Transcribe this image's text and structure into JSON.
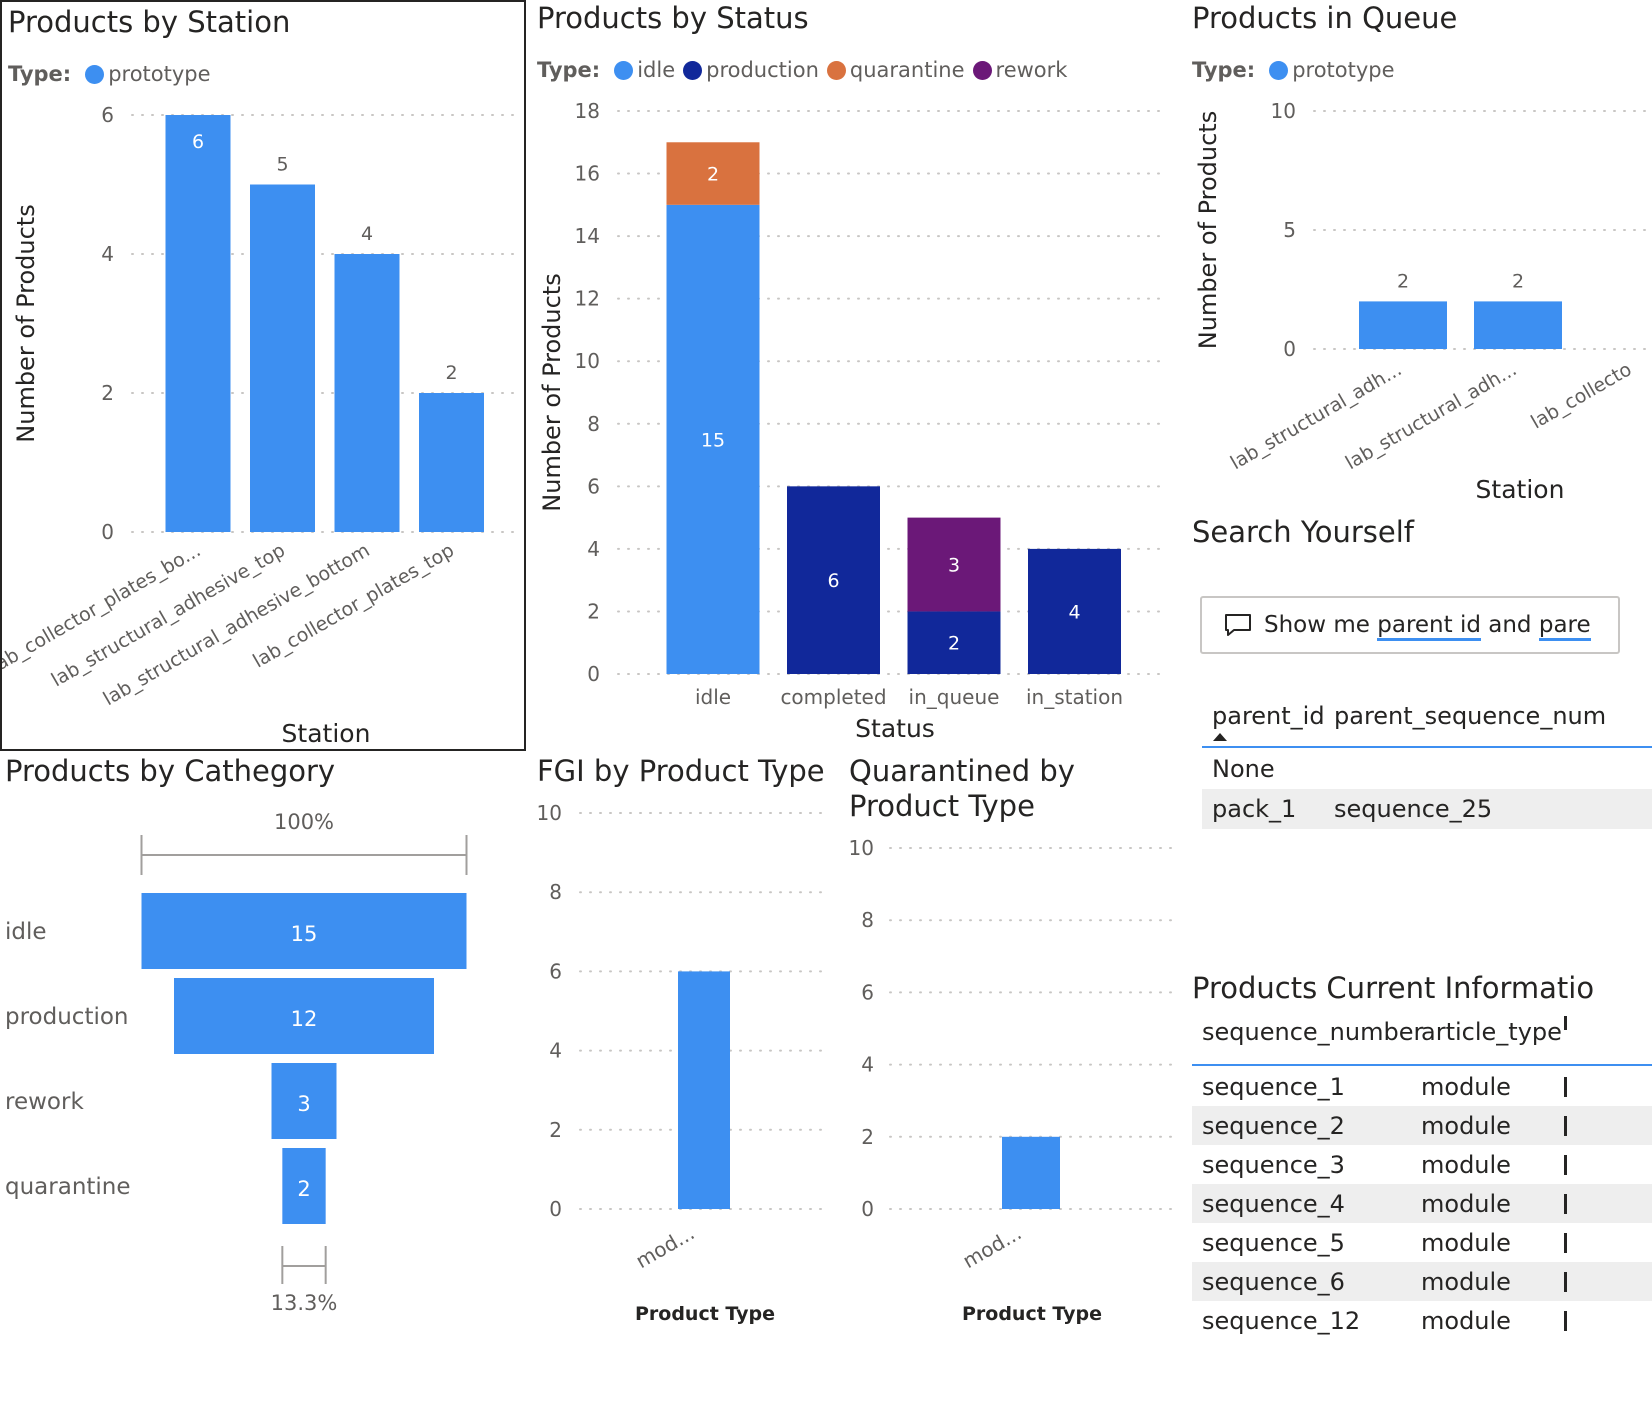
{
  "colors": {
    "idle": "#3d8ff1",
    "production": "#11289a",
    "quarantine": "#d9723f",
    "rework": "#6b1878",
    "grid": "#c8c6c4",
    "text": "#605e5c"
  },
  "products_by_station": {
    "title": "Products by Station",
    "legend_label": "Type:",
    "legend_items": [
      "prototype"
    ]
  },
  "products_by_status": {
    "title": "Products by Status",
    "legend_label": "Type:",
    "legend_items": [
      "idle",
      "production",
      "quarantine",
      "rework"
    ]
  },
  "products_in_queue": {
    "title": "Products in Queue",
    "legend_label": "Type:",
    "legend_items": [
      "prototype"
    ]
  },
  "products_by_category": {
    "title": "Products by Cathegory"
  },
  "fgi_by_type": {
    "title": "FGI by Product Type"
  },
  "quarantined_by_type": {
    "title_line1": "Quarantined by",
    "title_line2": "Product Type"
  },
  "search": {
    "title": "Search Yourself",
    "query_parts": [
      "Show me ",
      "parent id",
      " and ",
      "pare"
    ],
    "icon": "chat-bubble-icon",
    "table": {
      "headers": [
        "parent_id",
        "parent_sequence_num"
      ],
      "rows": [
        [
          "None",
          ""
        ],
        [
          "pack_1",
          "sequence_25"
        ]
      ]
    }
  },
  "current_info": {
    "title": "Products Current Informatio",
    "headers": [
      "sequence_number",
      "article_type"
    ],
    "rows": [
      [
        "sequence_1",
        "module"
      ],
      [
        "sequence_2",
        "module"
      ],
      [
        "sequence_3",
        "module"
      ],
      [
        "sequence_4",
        "module"
      ],
      [
        "sequence_5",
        "module"
      ],
      [
        "sequence_6",
        "module"
      ],
      [
        "sequence_12",
        "module"
      ]
    ]
  },
  "chart_data": [
    {
      "id": "station",
      "type": "bar",
      "title": "Products by Station",
      "xlabel": "Station",
      "ylabel": "Number of Products",
      "ylim": [
        0,
        6
      ],
      "yticks": [
        0,
        2,
        4,
        6
      ],
      "categories": [
        "lab_collector_plates_bo...",
        "lab_structural_adhesive_top",
        "lab_structural_adhesive_bottom",
        "lab_collector_plates_top"
      ],
      "series": [
        {
          "name": "prototype",
          "values": [
            6,
            5,
            4,
            2
          ]
        }
      ],
      "legend": "top-left",
      "grid": true
    },
    {
      "id": "status",
      "type": "bar",
      "stacked": true,
      "title": "Products by Status",
      "xlabel": "Status",
      "ylabel": "Number of Products",
      "ylim": [
        0,
        18
      ],
      "yticks": [
        0,
        2,
        4,
        6,
        8,
        10,
        12,
        14,
        16,
        18
      ],
      "categories": [
        "idle",
        "completed",
        "in_queue",
        "in_station"
      ],
      "series": [
        {
          "name": "idle",
          "values": [
            15,
            0,
            0,
            0
          ]
        },
        {
          "name": "production",
          "values": [
            0,
            6,
            2,
            4
          ]
        },
        {
          "name": "quarantine",
          "values": [
            2,
            0,
            0,
            0
          ]
        },
        {
          "name": "rework",
          "values": [
            0,
            0,
            3,
            0
          ]
        }
      ],
      "legend": "top-left",
      "grid": true
    },
    {
      "id": "queue",
      "type": "bar",
      "title": "Products in Queue",
      "xlabel": "Station",
      "ylabel": "Number of Products",
      "ylim": [
        0,
        10
      ],
      "yticks": [
        0,
        5,
        10
      ],
      "categories": [
        "lab_structural_adh...",
        "lab_structural_adh...",
        "lab_collecto"
      ],
      "series": [
        {
          "name": "prototype",
          "values": [
            2,
            2,
            null
          ]
        }
      ],
      "legend": "top-left",
      "grid": true
    },
    {
      "id": "category",
      "type": "funnel",
      "title": "Products by Cathegory",
      "categories": [
        "idle",
        "production",
        "rework",
        "quarantine"
      ],
      "values": [
        15,
        12,
        3,
        2
      ],
      "top_label": "100%",
      "bottom_label": "13.3%"
    },
    {
      "id": "fgi",
      "type": "bar",
      "title": "FGI by Product Type",
      "xlabel": "Product Type",
      "ylabel": "",
      "ylim": [
        0,
        10
      ],
      "yticks": [
        0,
        2,
        4,
        6,
        8,
        10
      ],
      "categories": [
        "mod..."
      ],
      "values": [
        6
      ],
      "grid": true
    },
    {
      "id": "quarantined",
      "type": "bar",
      "title": "Quarantined by Product Type",
      "xlabel": "Product Type",
      "ylabel": "",
      "ylim": [
        0,
        10
      ],
      "yticks": [
        0,
        2,
        4,
        6,
        8,
        10
      ],
      "categories": [
        "mod..."
      ],
      "values": [
        2
      ],
      "grid": true
    }
  ]
}
